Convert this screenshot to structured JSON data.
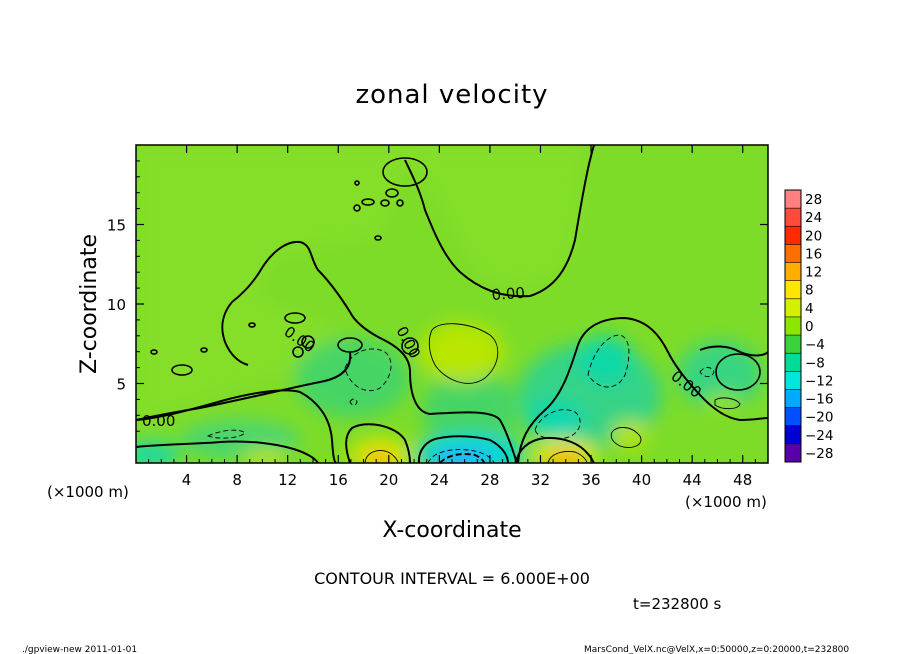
{
  "chart_data": {
    "type": "heatmap",
    "title": "zonal velocity",
    "xlabel": "X-coordinate",
    "ylabel": "Z-coordinate",
    "x_unit_label": "(×1000 m)",
    "y_unit_label": "(×1000 m)",
    "xlim": [
      0,
      50
    ],
    "ylim": [
      0,
      20
    ],
    "x_ticks": [
      4,
      8,
      12,
      16,
      20,
      24,
      28,
      32,
      36,
      40,
      44,
      48
    ],
    "y_ticks": [
      5,
      10,
      15
    ],
    "colorbar": {
      "labels": [
        "28",
        "24",
        "20",
        "16",
        "12",
        "8",
        "4",
        "0",
        "−4",
        "−8",
        "−12",
        "−16",
        "−20",
        "−24",
        "−28"
      ],
      "colors": [
        "#ff8080",
        "#ff4b3c",
        "#ff2a00",
        "#ff6e00",
        "#ffae00",
        "#ffe600",
        "#d2f000",
        "#8ce600",
        "#3cd23c",
        "#00dc96",
        "#00e6dc",
        "#00aaff",
        "#0050ff",
        "#0000d2",
        "#5a00aa"
      ]
    },
    "contour_labels": [
      "0.00",
      "0.00",
      "0.00",
      "0.00",
      "0.00"
    ],
    "contour_interval_text": "CONTOUR INTERVAL = 6.000E+00",
    "time_text": "t=232800 s",
    "footer_left": "./gpview-new   2011-01-01",
    "footer_right": "MarsCond_VelX.nc@VelX,x=0:50000,z=0:20000,t=232800"
  }
}
